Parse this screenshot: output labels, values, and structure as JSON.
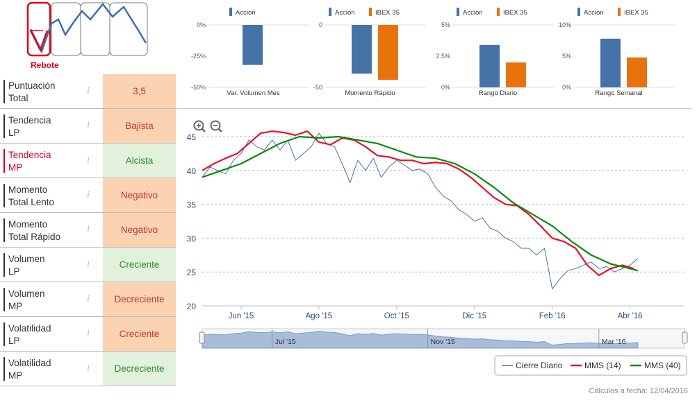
{
  "logo": {
    "label": "Rebote"
  },
  "indicators": [
    {
      "label": "Puntuación\nTotal",
      "value": "3,5",
      "tone": "neu",
      "highlight": false
    },
    {
      "label": "Tendencia\nLP",
      "value": "Bajista",
      "tone": "neg",
      "highlight": false
    },
    {
      "label": "Tendencia\nMP",
      "value": "Alcista",
      "tone": "pos",
      "highlight": true
    },
    {
      "label": "Momento\nTotal Lento",
      "value": "Negativo",
      "tone": "neg",
      "highlight": false
    },
    {
      "label": "Momento\nTotal Rápido",
      "value": "Negativo",
      "tone": "neg",
      "highlight": false
    },
    {
      "label": "Volumen\nLP",
      "value": "Creciente",
      "tone": "pos",
      "highlight": false
    },
    {
      "label": "Volumen\nMP",
      "value": "Decreciente",
      "tone": "neg",
      "highlight": false
    },
    {
      "label": "Volatilidad\nLP",
      "value": "Creciente",
      "tone": "neg",
      "highlight": false
    },
    {
      "label": "Volatilidad\nMP",
      "value": "Decreciente",
      "tone": "pos",
      "highlight": false
    }
  ],
  "info_glyph": "i",
  "colors": {
    "accion": "#4572a7",
    "ibex": "#e8720c",
    "cierre": "#4572a7",
    "mms14": "#e8102a",
    "mms40": "#0a8a0a"
  },
  "chart_data": [
    {
      "type": "bar",
      "title": "Var. Volumen Mes",
      "legend": [
        "Accion"
      ],
      "yticks": [
        "0%",
        "-25%",
        "-50%"
      ],
      "ylim": [
        -50,
        0
      ],
      "categories": [
        "Accion"
      ],
      "values": [
        -32
      ]
    },
    {
      "type": "bar",
      "title": "Momento Rápido",
      "legend": [
        "Accion",
        "IBEX 35"
      ],
      "yticks": [
        "0",
        "-50"
      ],
      "ylim": [
        -50,
        0
      ],
      "categories": [
        "Accion",
        "IBEX 35"
      ],
      "values": [
        -39,
        -44
      ]
    },
    {
      "type": "bar",
      "title": "Rango Diario",
      "legend": [
        "Accion",
        "IBEX 35"
      ],
      "yticks": [
        "5%",
        "2.5%",
        "0%"
      ],
      "ylim": [
        0,
        5
      ],
      "categories": [
        "Accion",
        "IBEX 35"
      ],
      "values": [
        3.4,
        2.0
      ]
    },
    {
      "type": "bar",
      "title": "Rango Semanal",
      "legend": [
        "Accion",
        "IBEX 35"
      ],
      "yticks": [
        "10%",
        "5%",
        "0%"
      ],
      "ylim": [
        0,
        10
      ],
      "categories": [
        "Accion",
        "IBEX 35"
      ],
      "values": [
        7.8,
        4.8
      ]
    },
    {
      "type": "line",
      "title": "",
      "ylim": [
        20,
        45
      ],
      "yticks": [
        "45",
        "40",
        "35",
        "30",
        "25",
        "20"
      ],
      "xlim": [
        0,
        12.4
      ],
      "xticks": [
        {
          "label": "Jun '15",
          "x": 1
        },
        {
          "label": "Ago '15",
          "x": 3
        },
        {
          "label": "Oct '15",
          "x": 5
        },
        {
          "label": "Dic '15",
          "x": 7
        },
        {
          "label": "Feb '16",
          "x": 9
        },
        {
          "label": "Abr '16",
          "x": 11
        }
      ],
      "navigator_ticks": [
        "Jul '15",
        "Nov '15",
        "Mar '16"
      ],
      "legend": [
        "Cierre Diario",
        "MMS (14)",
        "MMS (40)"
      ],
      "series": [
        {
          "name": "Cierre Diario",
          "x": [
            0,
            0.2,
            0.4,
            0.6,
            0.8,
            1.0,
            1.2,
            1.4,
            1.6,
            1.8,
            2.0,
            2.2,
            2.4,
            2.6,
            2.8,
            3.0,
            3.2,
            3.4,
            3.6,
            3.8,
            4.0,
            4.2,
            4.4,
            4.6,
            4.8,
            5.0,
            5.2,
            5.4,
            5.6,
            5.8,
            6.0,
            6.2,
            6.4,
            6.6,
            6.8,
            7.0,
            7.2,
            7.4,
            7.6,
            7.8,
            8.0,
            8.2,
            8.4,
            8.6,
            8.8,
            9.0,
            9.2,
            9.4,
            9.6,
            9.8,
            10.0,
            10.2,
            10.4,
            10.6,
            10.8,
            11.0,
            11.2
          ],
          "values": [
            39,
            40.5,
            40,
            39.5,
            41.5,
            42.5,
            44.5,
            43.5,
            43,
            44.5,
            43,
            44.5,
            41.5,
            42.5,
            43.5,
            45.5,
            44,
            43.5,
            41,
            38.2,
            41.5,
            40,
            41.8,
            39,
            40.5,
            41.5,
            40.8,
            40,
            40.2,
            39.5,
            37.5,
            36.2,
            35.5,
            34.2,
            33.5,
            32.5,
            33,
            31.5,
            31,
            30,
            29.5,
            28.5,
            28.5,
            27.5,
            28.5,
            22.5,
            24,
            25.2,
            25.5,
            26,
            26.5,
            25.5,
            25.8,
            25,
            25.5,
            26,
            27
          ]
        },
        {
          "name": "MMS (14)",
          "x": [
            0,
            0.3,
            0.6,
            0.9,
            1.2,
            1.5,
            1.8,
            2.1,
            2.4,
            2.7,
            3.0,
            3.3,
            3.6,
            3.9,
            4.2,
            4.5,
            4.8,
            5.1,
            5.4,
            5.7,
            6.0,
            6.3,
            6.6,
            6.9,
            7.2,
            7.5,
            7.8,
            8.1,
            8.4,
            8.7,
            9.0,
            9.3,
            9.6,
            9.9,
            10.2,
            10.5,
            10.8,
            11.1
          ],
          "values": [
            40,
            41,
            41.8,
            42.5,
            44,
            45.5,
            45.8,
            45.6,
            45.2,
            45.8,
            44.2,
            43.8,
            44.8,
            44.5,
            43.5,
            42.2,
            42,
            41.5,
            41.5,
            41,
            41.2,
            41,
            40.2,
            39,
            37.5,
            36,
            35,
            34.8,
            33.5,
            31.8,
            30,
            29.5,
            28.5,
            26,
            24.5,
            25.5,
            26,
            25.5
          ]
        },
        {
          "name": "MMS (40)",
          "x": [
            0,
            0.5,
            1.0,
            1.5,
            2.0,
            2.5,
            3.0,
            3.5,
            4.0,
            4.5,
            5.0,
            5.5,
            6.0,
            6.5,
            7.0,
            7.5,
            8.0,
            8.5,
            9.0,
            9.5,
            10.0,
            10.5,
            11.0,
            11.2
          ],
          "values": [
            39,
            40,
            41,
            42.5,
            44,
            45,
            44.8,
            45,
            44.5,
            44,
            43,
            42,
            41.8,
            41,
            39.5,
            37.5,
            35.2,
            33.5,
            31.8,
            29.5,
            27.5,
            26.2,
            25.5,
            25.2
          ]
        }
      ]
    }
  ],
  "footer": "Cálculos a fecha: 12/04/2016"
}
